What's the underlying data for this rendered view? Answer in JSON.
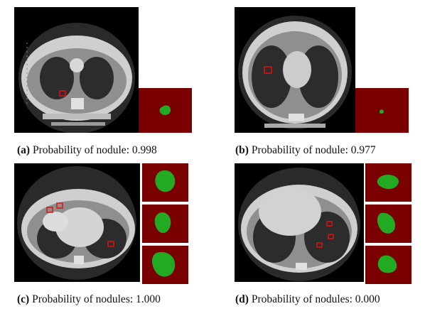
{
  "panels": [
    {
      "id": "a",
      "label": "(a)",
      "caption": "Probability of nodule: 0.998"
    },
    {
      "id": "b",
      "label": "(b)",
      "caption": "Probability of nodule: 0.977"
    },
    {
      "id": "c",
      "label": "(c)",
      "caption": "Probability of nodules: 1.000"
    },
    {
      "id": "d",
      "label": "(d)",
      "caption": "Probability of nodules: 0.000"
    }
  ],
  "colors": {
    "mask_background": "#7a0000",
    "nodule_mask": "#22aa22",
    "marker": "#e01010",
    "scan_background": "#000000"
  }
}
